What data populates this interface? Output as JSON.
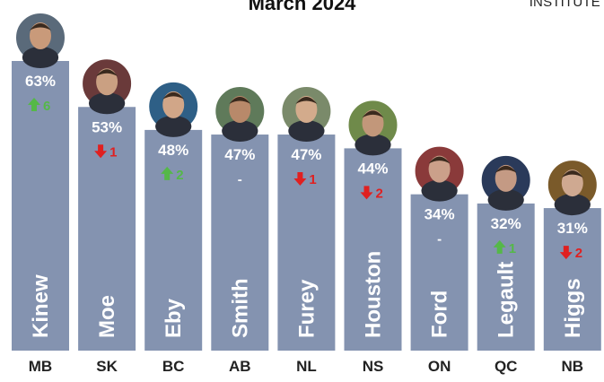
{
  "header": {
    "title": "March 2024",
    "brand_top": "",
    "brand_bottom": "INSTITUTE"
  },
  "colors": {
    "bar": "#8493b0",
    "up": "#55b848",
    "down": "#e02020",
    "neutral": "#ffffff"
  },
  "chart_data": {
    "type": "bar",
    "title": "March 2024",
    "xlabel": "",
    "ylabel": "",
    "ylim": [
      0,
      70
    ],
    "grid": false,
    "categories": [
      "MB",
      "SK",
      "BC",
      "AB",
      "NL",
      "NS",
      "ON",
      "QC",
      "NB"
    ],
    "series": [
      {
        "values": [
          63,
          53,
          48,
          47,
          47,
          44,
          34,
          32,
          31
        ]
      }
    ],
    "value_labels": [
      "63%",
      "53%",
      "48%",
      "47%",
      "47%",
      "44%",
      "34%",
      "32%",
      "31%"
    ],
    "bar_labels": [
      "Kinew",
      "Moe",
      "Eby",
      "Smith",
      "Furey",
      "Houston",
      "Ford",
      "Legault",
      "Higgs"
    ],
    "changes": [
      {
        "dir": "up",
        "text": "6"
      },
      {
        "dir": "down",
        "text": "1"
      },
      {
        "dir": "up",
        "text": "2"
      },
      {
        "dir": "none",
        "text": "-"
      },
      {
        "dir": "down",
        "text": "1"
      },
      {
        "dir": "down",
        "text": "2"
      },
      {
        "dir": "none",
        "text": "-"
      },
      {
        "dir": "up",
        "text": "1"
      },
      {
        "dir": "down",
        "text": "2"
      }
    ]
  }
}
